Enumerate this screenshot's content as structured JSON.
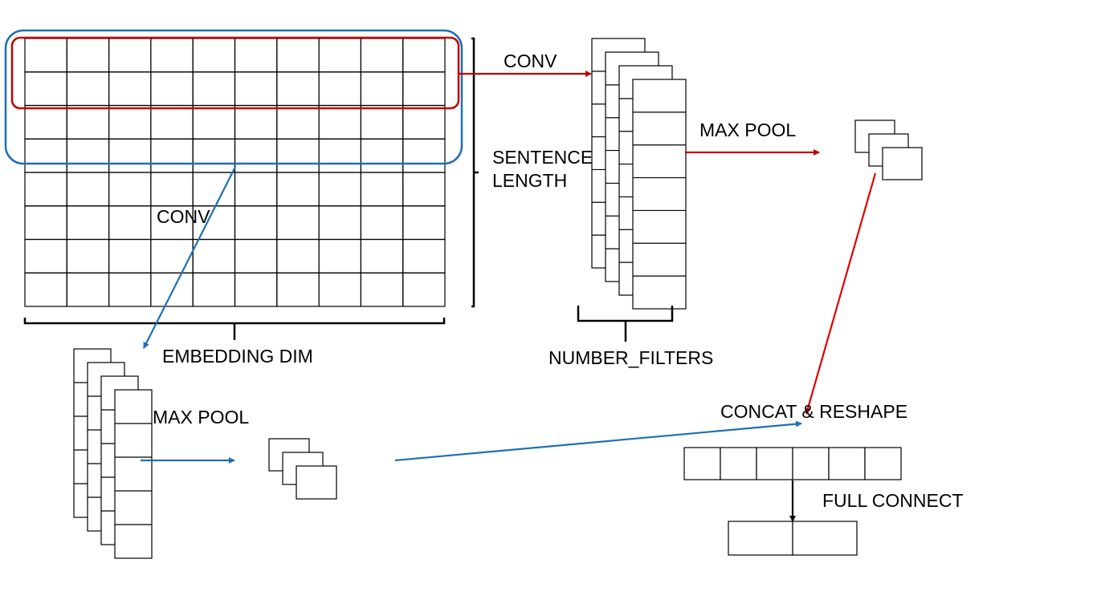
{
  "diagram": {
    "labels": {
      "conv_top": "CONV",
      "conv_left": "CONV",
      "sentence_length_1": "SENTENCE",
      "sentence_length_2": "LENGTH",
      "embedding_dim": "EMBEDDING DIM",
      "number_filters": "NUMBER_FILTERS",
      "max_pool_top": "MAX POOL",
      "max_pool_bottom": "MAX POOL",
      "concat_reshape": "CONCAT & RESHAPE",
      "full_connect": "FULL CONNECT"
    },
    "grid": {
      "rows": 8,
      "cols": 10
    },
    "filter_window_red_rows": 2,
    "filter_window_blue_rows": 4,
    "feature_map_layers": 4,
    "pooled_layers": 3,
    "concat_cells": 6,
    "output_cells": 2,
    "colors": {
      "red": "#c00000",
      "blue": "#1f6fb4",
      "arrow_red": "#e00000",
      "line": "#000000"
    }
  }
}
